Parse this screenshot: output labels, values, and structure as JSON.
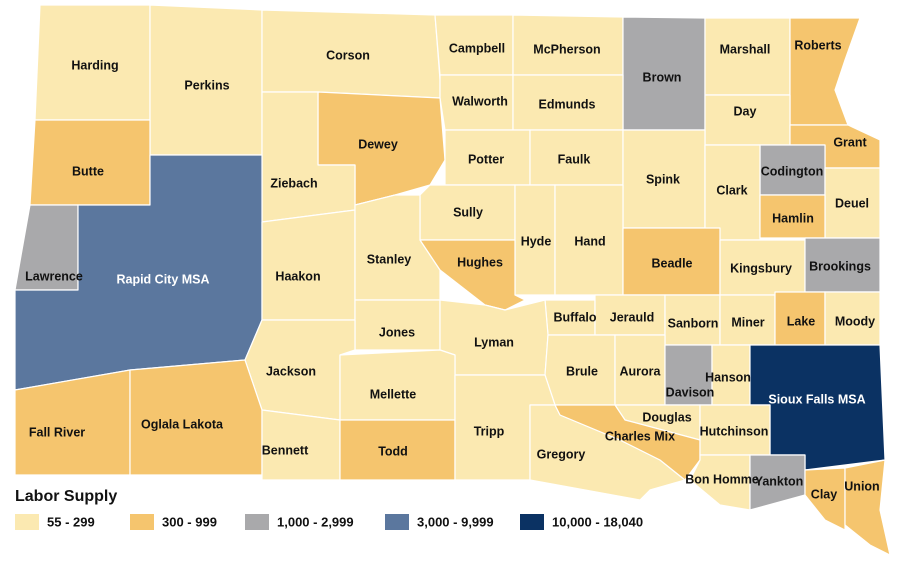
{
  "legend": {
    "title": "Labor Supply",
    "items": [
      {
        "label": "55 - 299",
        "color": "#fbe9b1"
      },
      {
        "label": "300 - 999",
        "color": "#f5c56e"
      },
      {
        "label": "1,000 - 2,999",
        "color": "#a9a9ab"
      },
      {
        "label": "3,000 - 9,999",
        "color": "#5b779e"
      },
      {
        "label": "10,000 - 18,040",
        "color": "#0b3263"
      }
    ]
  },
  "counties": [
    {
      "name": "Harding",
      "class": 0
    },
    {
      "name": "Perkins",
      "class": 0
    },
    {
      "name": "Corson",
      "class": 0
    },
    {
      "name": "Campbell",
      "class": 0
    },
    {
      "name": "McPherson",
      "class": 0
    },
    {
      "name": "Brown",
      "class": 2
    },
    {
      "name": "Marshall",
      "class": 0
    },
    {
      "name": "Roberts",
      "class": 1
    },
    {
      "name": "Walworth",
      "class": 0
    },
    {
      "name": "Edmunds",
      "class": 0
    },
    {
      "name": "Day",
      "class": 0
    },
    {
      "name": "Butte",
      "class": 1
    },
    {
      "name": "Dewey",
      "class": 1
    },
    {
      "name": "Potter",
      "class": 0
    },
    {
      "name": "Faulk",
      "class": 0
    },
    {
      "name": "Spink",
      "class": 0
    },
    {
      "name": "Grant",
      "class": 1
    },
    {
      "name": "Codington",
      "class": 2
    },
    {
      "name": "Ziebach",
      "class": 0
    },
    {
      "name": "Clark",
      "class": 0
    },
    {
      "name": "Deuel",
      "class": 0
    },
    {
      "name": "Hamlin",
      "class": 1
    },
    {
      "name": "Sully",
      "class": 0
    },
    {
      "name": "Hyde",
      "class": 0
    },
    {
      "name": "Hand",
      "class": 0
    },
    {
      "name": "Beadle",
      "class": 1
    },
    {
      "name": "Kingsbury",
      "class": 0
    },
    {
      "name": "Brookings",
      "class": 2
    },
    {
      "name": "Lawrence",
      "class": 2
    },
    {
      "name": "Rapid City MSA",
      "class": 3
    },
    {
      "name": "Haakon",
      "class": 0
    },
    {
      "name": "Stanley",
      "class": 0
    },
    {
      "name": "Hughes",
      "class": 1
    },
    {
      "name": "Buffalo",
      "class": 0
    },
    {
      "name": "Jerauld",
      "class": 0
    },
    {
      "name": "Sanborn",
      "class": 0
    },
    {
      "name": "Miner",
      "class": 0
    },
    {
      "name": "Lake",
      "class": 1
    },
    {
      "name": "Moody",
      "class": 0
    },
    {
      "name": "Jones",
      "class": 0
    },
    {
      "name": "Lyman",
      "class": 0
    },
    {
      "name": "Jackson",
      "class": 0
    },
    {
      "name": "Brule",
      "class": 0
    },
    {
      "name": "Aurora",
      "class": 0
    },
    {
      "name": "Davison",
      "class": 2
    },
    {
      "name": "Hanson",
      "class": 0
    },
    {
      "name": "Sioux Falls MSA",
      "class": 4
    },
    {
      "name": "Mellette",
      "class": 0
    },
    {
      "name": "Fall River",
      "class": 1
    },
    {
      "name": "Oglala Lakota",
      "class": 1
    },
    {
      "name": "Bennett",
      "class": 0
    },
    {
      "name": "Todd",
      "class": 1
    },
    {
      "name": "Tripp",
      "class": 0
    },
    {
      "name": "Gregory",
      "class": 0
    },
    {
      "name": "Douglas",
      "class": 0
    },
    {
      "name": "Charles Mix",
      "class": 1
    },
    {
      "name": "Hutchinson",
      "class": 0
    },
    {
      "name": "Bon Homme",
      "class": 0
    },
    {
      "name": "Yankton",
      "class": 2
    },
    {
      "name": "Clay",
      "class": 1
    },
    {
      "name": "Union",
      "class": 1
    }
  ]
}
